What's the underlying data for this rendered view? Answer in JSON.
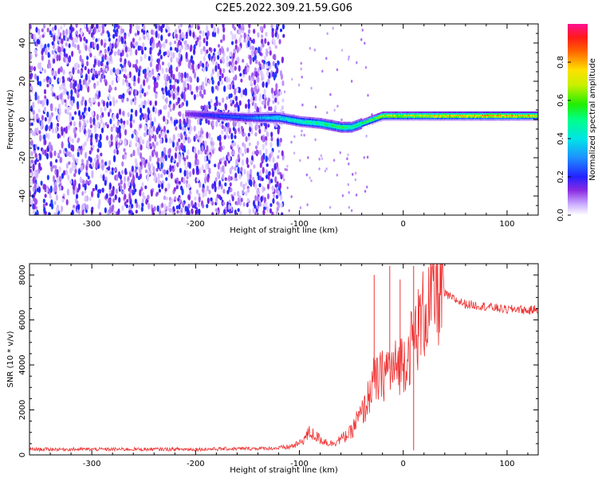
{
  "title": "C2E5.2022.309.21.59.G06",
  "chart_data": [
    {
      "type": "heatmap",
      "xlabel": "Height of straight line (km)",
      "ylabel": "Frequency (Hz)",
      "xlim": [
        -360,
        130
      ],
      "ylim": [
        -50,
        50
      ],
      "xticks": [
        -300,
        -200,
        -100,
        0,
        100
      ],
      "yticks": [
        -40,
        -20,
        0,
        20,
        40
      ],
      "colorbar": {
        "label": "Normalized spectral amplitude",
        "range": [
          0.0,
          1.0
        ],
        "ticks": [
          "0.0",
          "0.2",
          "0.4",
          "0.6",
          "0.8"
        ],
        "colormap": "rainbow (white-violet-blue-cyan-green-yellow-red-magenta)"
      },
      "noise_region_x": [
        -360,
        -120
      ],
      "signal_track": {
        "x": [
          -210,
          -180,
          -150,
          -120,
          -100,
          -80,
          -60,
          -50,
          -40,
          -30,
          -20,
          0,
          50,
          100,
          130
        ],
        "frequency": [
          3,
          2,
          1,
          1,
          -1,
          -2,
          -4,
          -4,
          -2,
          0,
          2,
          2,
          2,
          2,
          2
        ],
        "amplitude": [
          0.15,
          0.25,
          0.3,
          0.45,
          0.5,
          0.55,
          0.6,
          0.55,
          0.6,
          0.65,
          0.75,
          0.75,
          0.85,
          0.9,
          0.8
        ]
      }
    },
    {
      "type": "line",
      "xlabel": "Height of straight line (km)",
      "ylabel": "SNR (10 * v/v)",
      "xlim": [
        -360,
        130
      ],
      "ylim": [
        0,
        8500
      ],
      "xticks": [
        -300,
        -200,
        -100,
        0,
        100
      ],
      "yticks": [
        0,
        2000,
        4000,
        6000,
        8000
      ],
      "color": "#ee3333",
      "series": [
        {
          "x": [
            -360,
            -300,
            -200,
            -150,
            -120,
            -110,
            -100,
            -90,
            -80,
            -70,
            -60,
            -50,
            -45,
            -40,
            -35,
            -30,
            -25,
            -20,
            -15,
            -10,
            -5,
            0,
            5,
            10,
            15,
            20,
            30,
            35,
            40,
            50,
            60,
            80,
            100,
            110,
            120,
            130
          ],
          "y": [
            250,
            250,
            250,
            280,
            300,
            350,
            500,
            1000,
            700,
            500,
            700,
            1000,
            1500,
            1800,
            2300,
            3200,
            3300,
            3500,
            3900,
            3700,
            4000,
            4200,
            4500,
            5200,
            5700,
            6300,
            7100,
            7300,
            7150,
            6900,
            6700,
            6600,
            6450,
            6500,
            6400,
            6500
          ]
        }
      ],
      "spikes": [
        {
          "x": -28,
          "y": 8000
        },
        {
          "x": -13,
          "y": 8400
        },
        {
          "x": -3,
          "y": 7800
        },
        {
          "x": 10,
          "y": 8400
        },
        {
          "x": 10,
          "y": 200
        }
      ]
    }
  ]
}
